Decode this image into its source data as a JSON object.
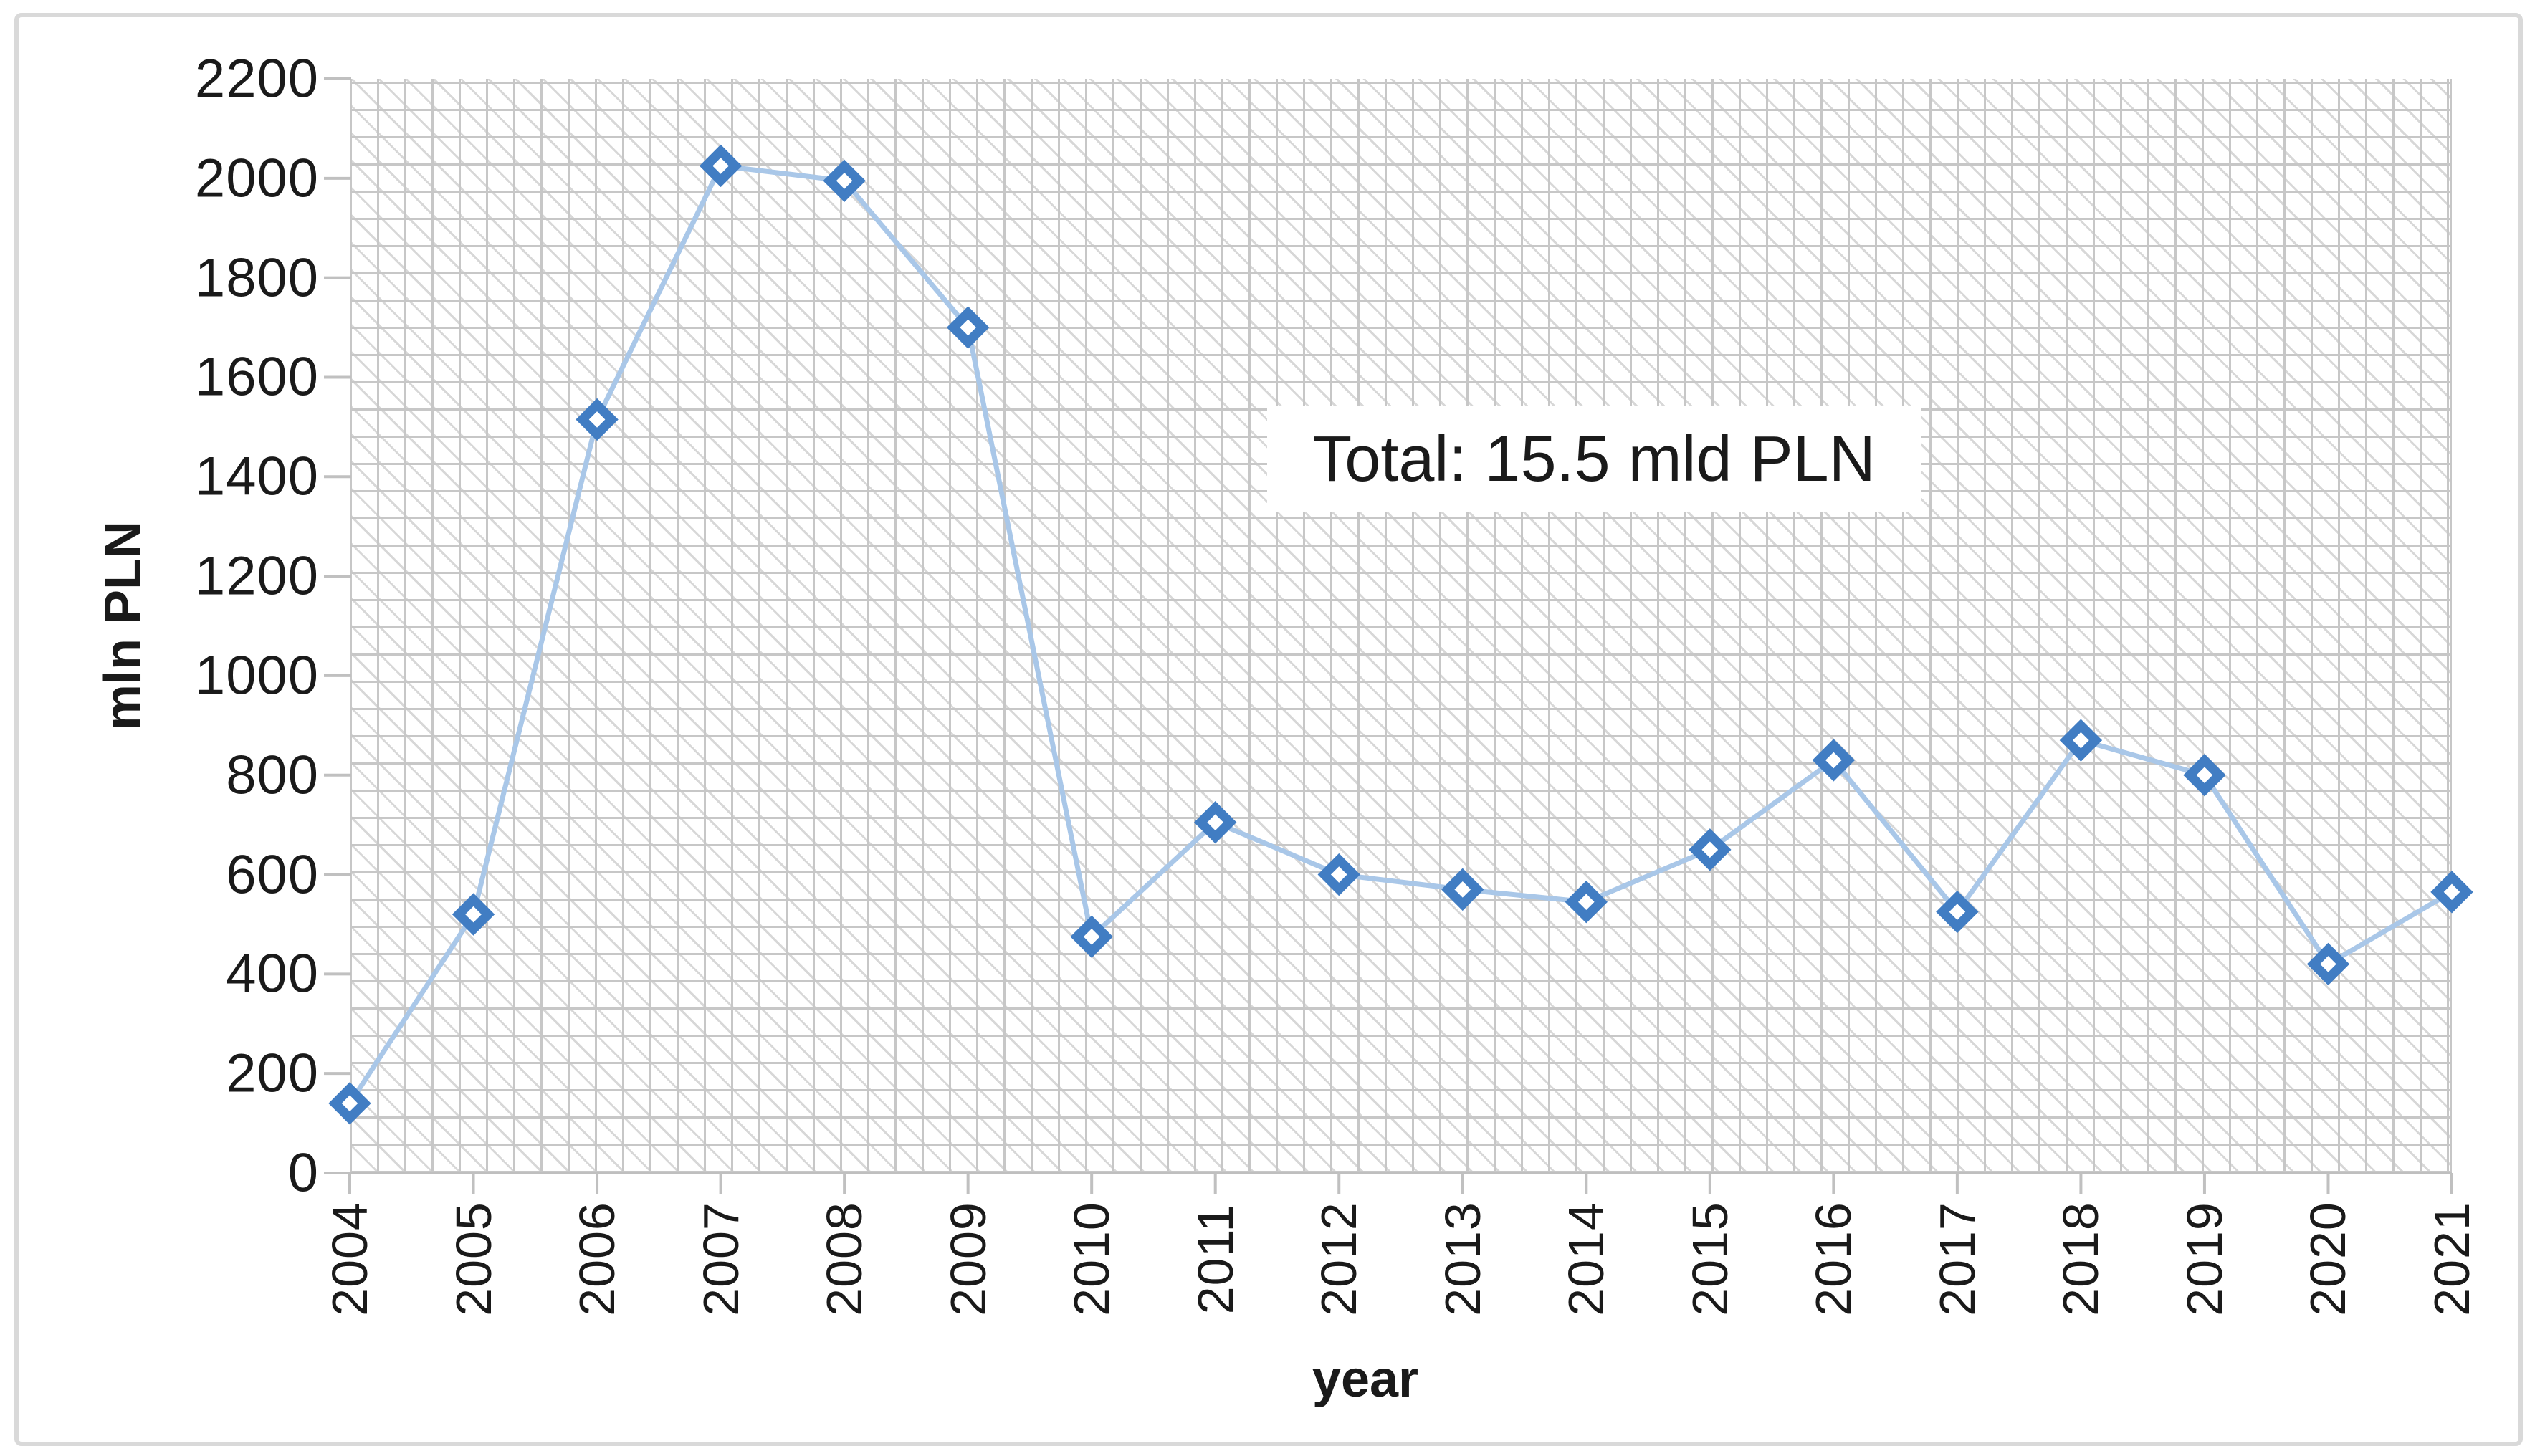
{
  "chart_data": {
    "type": "line",
    "title": "",
    "xlabel": "year",
    "ylabel": "mln PLN",
    "categories": [
      "2004",
      "2005",
      "2006",
      "2007",
      "2008",
      "2009",
      "2010",
      "2011",
      "2012",
      "2013",
      "2014",
      "2015",
      "2016",
      "2017",
      "2018",
      "2019",
      "2020",
      "2021"
    ],
    "series": [
      {
        "name": "mln PLN",
        "values": [
          140,
          520,
          1515,
          2025,
          1995,
          1700,
          475,
          705,
          600,
          570,
          545,
          650,
          830,
          525,
          870,
          800,
          420,
          565
        ]
      }
    ],
    "ylim": [
      0,
      2200
    ],
    "yticks": [
      0,
      200,
      400,
      600,
      800,
      1000,
      1200,
      1400,
      1600,
      1800,
      2000,
      2200
    ],
    "grid": "crosshatch-pattern-fill",
    "legend": "none",
    "marker_shape": "diamond",
    "annotation": "Total: 15.5 mld PLN"
  },
  "colors": {
    "marker_stroke": "#417dc3",
    "marker_fill": "#ffffff",
    "line": "#a9c7e8",
    "grid_line": "#c7c7c7",
    "axis_line": "#bfbfbf",
    "tick": "#c0c0c0",
    "text": "#1a1a1a",
    "figure_border": "#d9d9d9"
  }
}
